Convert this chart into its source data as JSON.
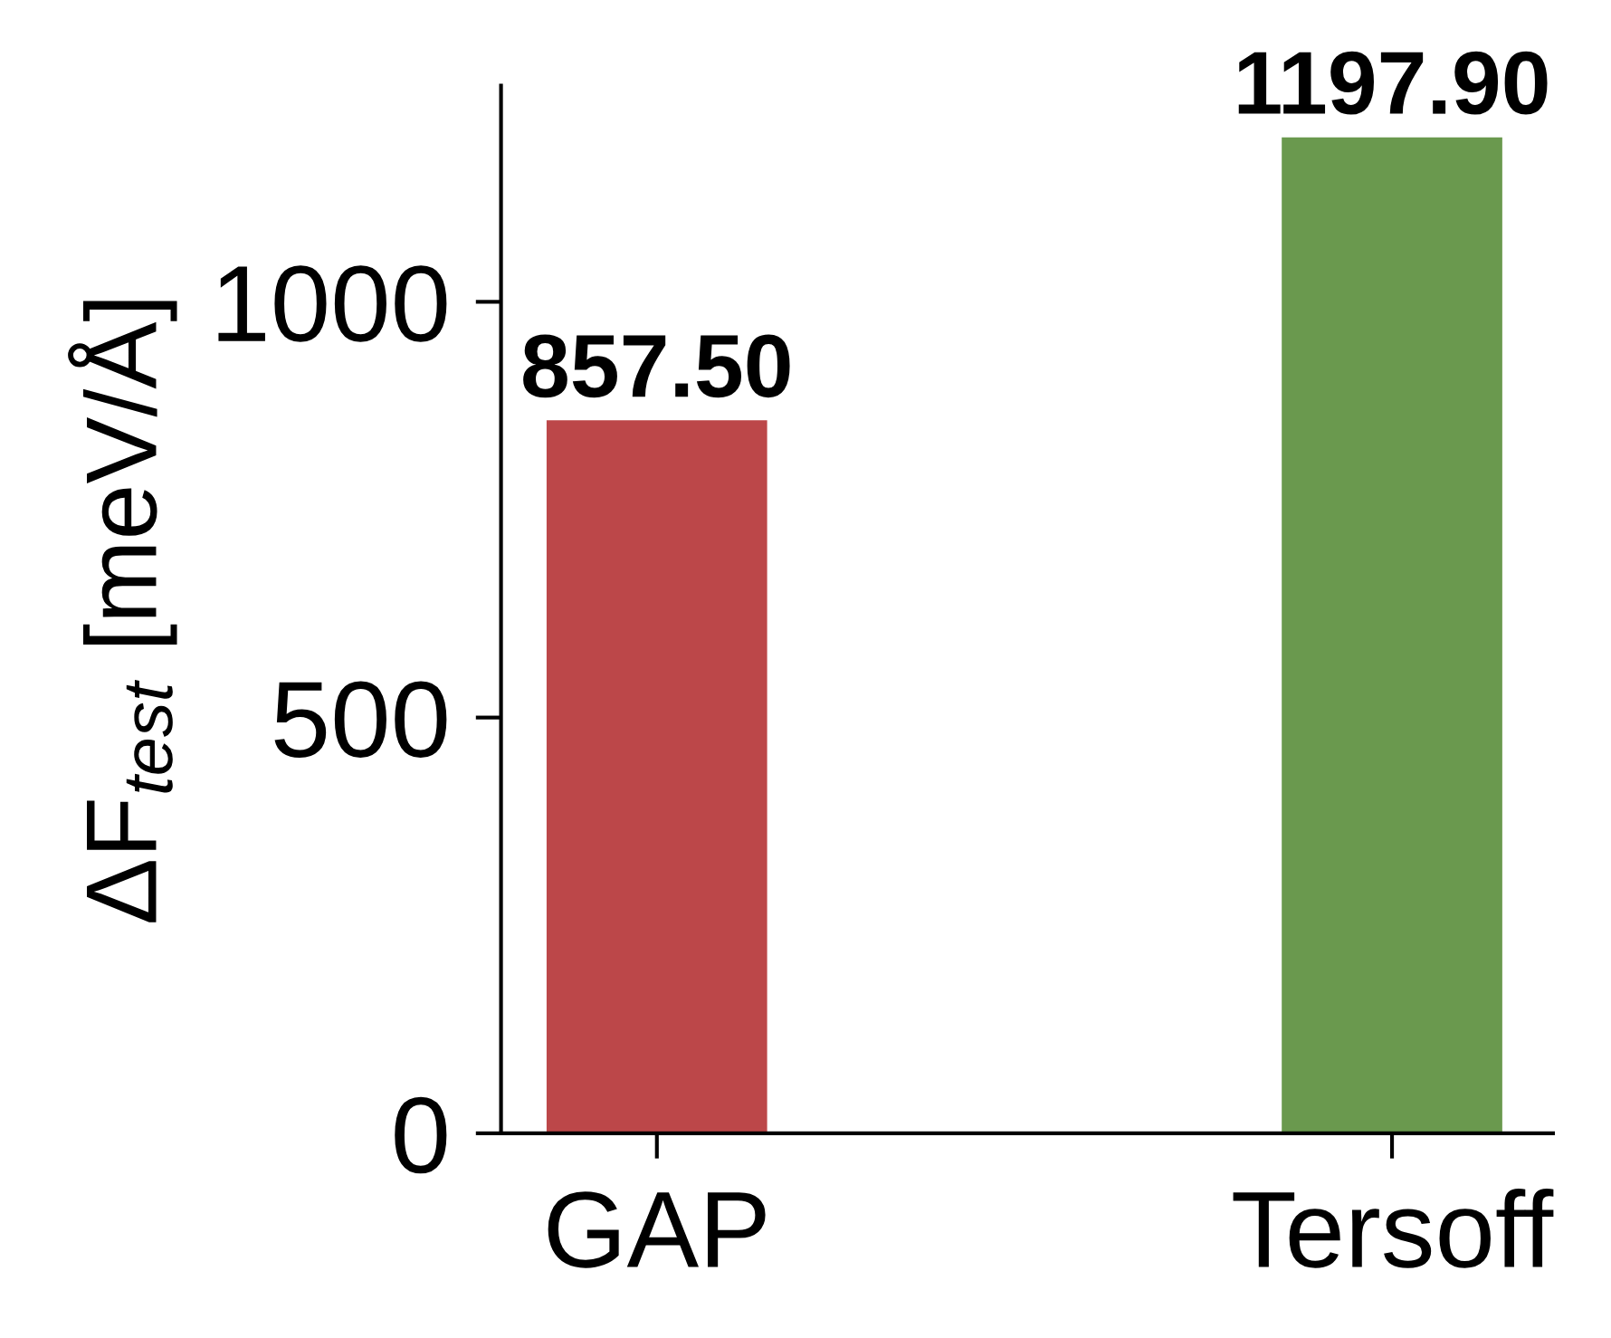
{
  "chart_data": {
    "type": "bar",
    "categories": [
      "GAP",
      "Tersoff"
    ],
    "values": [
      857.5,
      1197.9
    ],
    "colors": [
      "#bc4749",
      "#6a994e"
    ],
    "value_labels": [
      "857.50",
      "1197.90"
    ],
    "ylabel": "ΔF$_{test}$ [meV/Å]",
    "ylim": [
      0,
      1260
    ],
    "yticks": [
      0,
      500,
      1000
    ],
    "grid": false
  }
}
